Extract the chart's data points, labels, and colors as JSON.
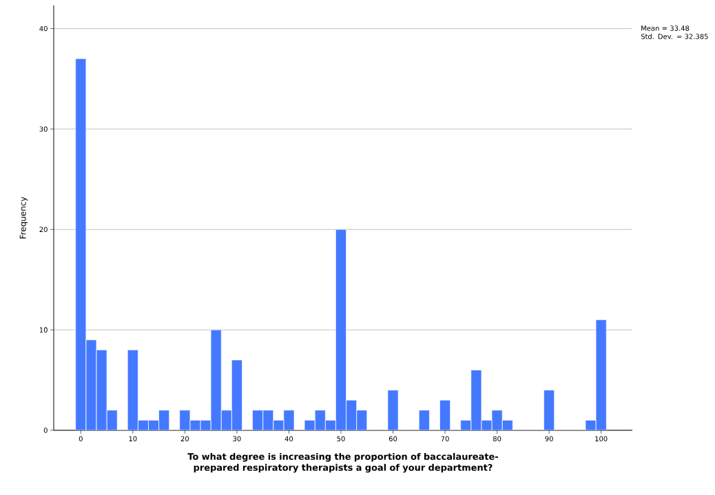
{
  "chart_data": {
    "type": "histogram",
    "xlabel": "To what degree is increasing the proportion of baccalaureate-prepared respiratory therapists a goal of your department?",
    "ylabel": "Frequency",
    "annotations": [
      "Mean = 33.48",
      "Std. Dev. = 32.385"
    ],
    "bins": [
      -1,
      1,
      3,
      5,
      7,
      9,
      11,
      13,
      15,
      17,
      19,
      21,
      23,
      25,
      27,
      29,
      31,
      33,
      35,
      37,
      39,
      41,
      43,
      45,
      47,
      49,
      51,
      53,
      55,
      57,
      59,
      61,
      63,
      65,
      67,
      69,
      71,
      73,
      75,
      77,
      79,
      81,
      83,
      85,
      87,
      89,
      91,
      93,
      95,
      97,
      99,
      101
    ],
    "values": [
      37,
      9,
      8,
      2,
      0,
      8,
      1,
      1,
      2,
      0,
      2,
      1,
      1,
      10,
      2,
      7,
      0,
      2,
      2,
      1,
      2,
      0,
      1,
      2,
      1,
      20,
      3,
      2,
      0,
      0,
      4,
      0,
      0,
      2,
      0,
      3,
      0,
      1,
      6,
      1,
      2,
      1,
      0,
      0,
      0,
      4,
      0,
      0,
      0,
      1,
      11
    ],
    "color": "#4479ff",
    "xlim": [
      -5.2,
      106
    ],
    "ylim": [
      0,
      42.3
    ],
    "xticks": [
      0,
      10,
      20,
      30,
      40,
      50,
      60,
      70,
      80,
      90,
      100
    ],
    "yticks": [
      0,
      10,
      20,
      30,
      40
    ],
    "grid": "y"
  }
}
